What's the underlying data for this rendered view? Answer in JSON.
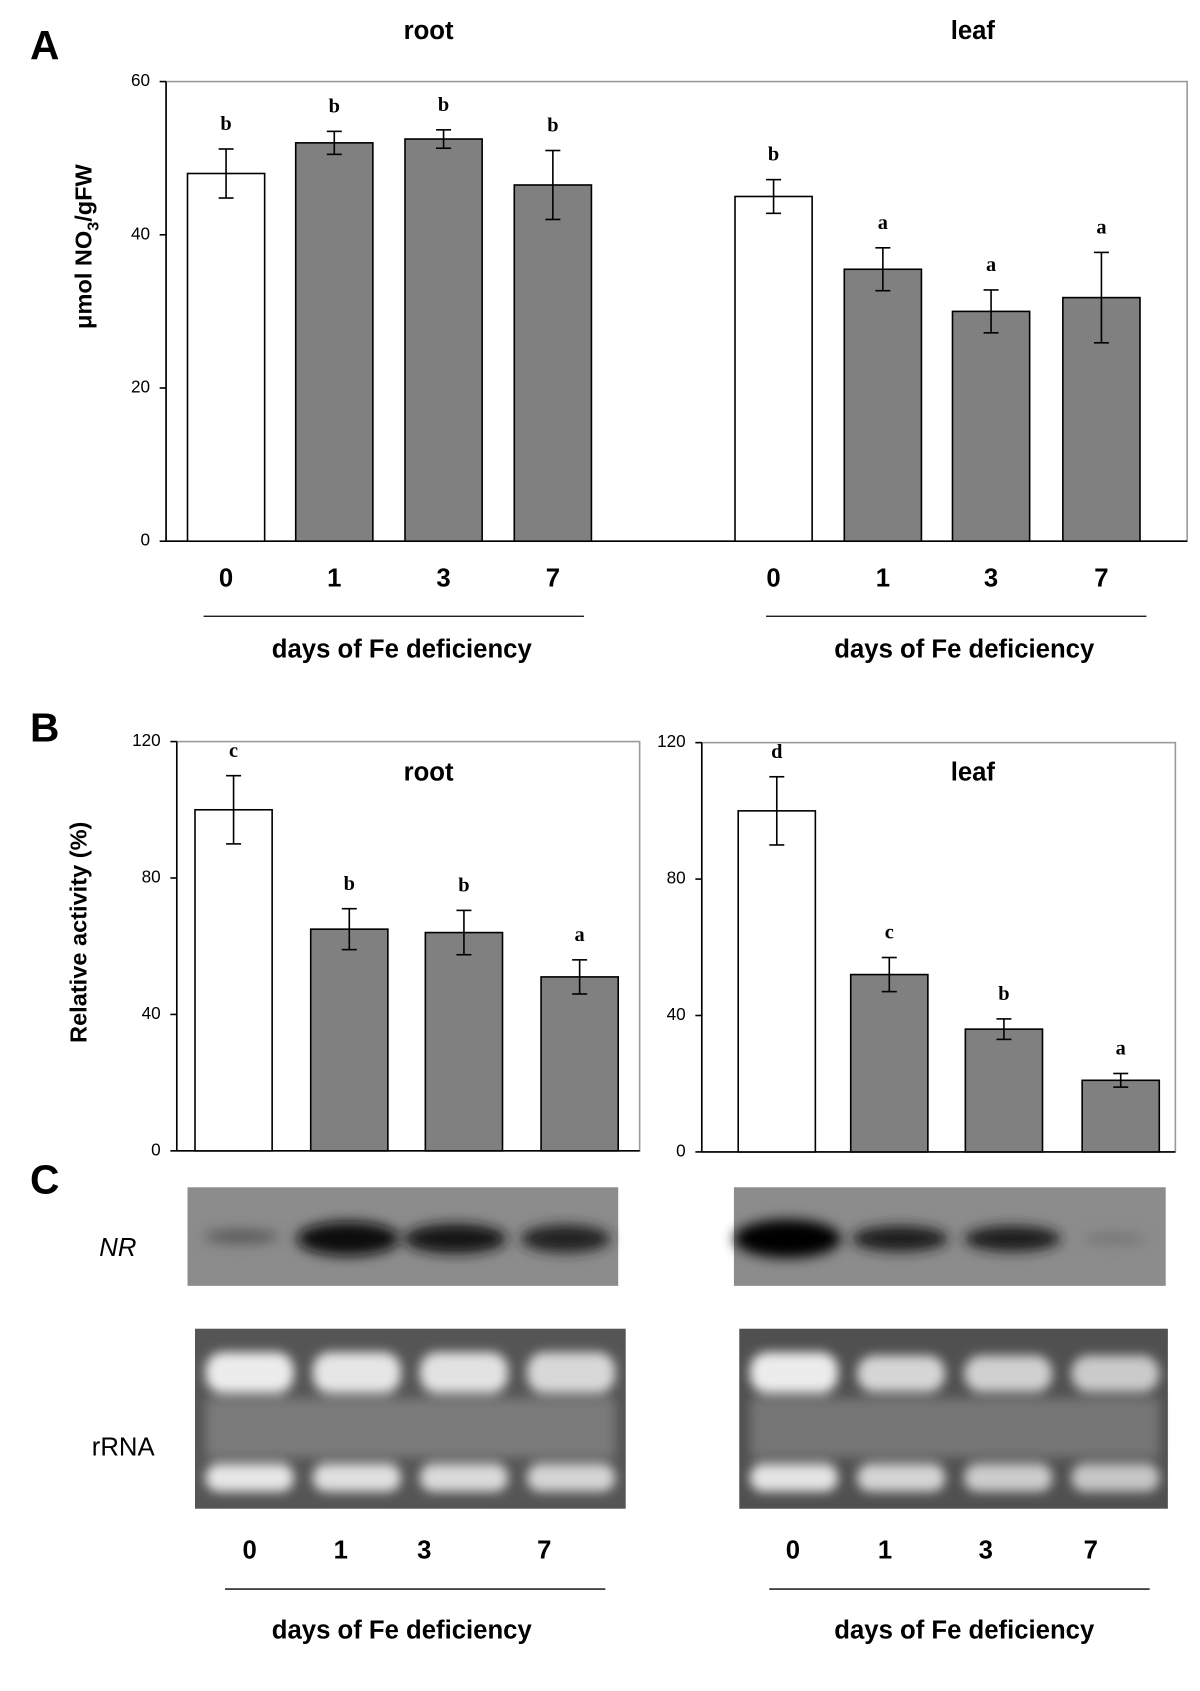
{
  "panel_labels": [
    "A",
    "B",
    "C"
  ],
  "chart_data": [
    {
      "type": "bar",
      "title": "root",
      "ylabel": [
        "μmol NO",
        "3",
        "/gFW"
      ],
      "categories": [
        "0",
        "1",
        "3",
        "7"
      ],
      "values": [
        48,
        52,
        52.5,
        46.5
      ],
      "errors": [
        3.2,
        1.5,
        1.2,
        4.5
      ],
      "annotations": [
        "b",
        "b",
        "b",
        "b"
      ],
      "colors": [
        "#ffffff",
        "#808080",
        "#808080",
        "#808080"
      ],
      "ylim": [
        0,
        60
      ],
      "yticks": [
        0,
        20,
        40,
        60
      ],
      "xlabel": "days of Fe deficiency"
    },
    {
      "type": "bar",
      "title": "leaf",
      "categories": [
        "0",
        "1",
        "3",
        "7"
      ],
      "values": [
        45,
        35.5,
        30,
        31.8
      ],
      "errors": [
        2.2,
        2.8,
        2.8,
        5.9
      ],
      "annotations": [
        "b",
        "a",
        "a",
        "a"
      ],
      "colors": [
        "#ffffff",
        "#808080",
        "#808080",
        "#808080"
      ],
      "ylim": [
        0,
        60
      ],
      "xlabel": "days of Fe deficiency"
    },
    {
      "type": "bar",
      "title": "root",
      "ylabel": [
        "Relative activity (%)"
      ],
      "values": [
        100,
        65,
        64,
        51
      ],
      "errors": [
        10,
        6,
        6.5,
        5
      ],
      "annotations": [
        "c",
        "b",
        "b",
        "a"
      ],
      "colors": [
        "#ffffff",
        "#808080",
        "#808080",
        "#808080"
      ],
      "ylim": [
        0,
        120
      ],
      "yticks": [
        0,
        40,
        80,
        120
      ]
    },
    {
      "type": "bar",
      "title": "leaf",
      "values": [
        100,
        52,
        36,
        21
      ],
      "errors": [
        10,
        5,
        3,
        2
      ],
      "annotations": [
        "d",
        "c",
        "b",
        "a"
      ],
      "colors": [
        "#ffffff",
        "#808080",
        "#808080",
        "#808080"
      ],
      "ylim": [
        0,
        120
      ],
      "yticks": [
        0,
        40,
        80,
        120
      ]
    }
  ],
  "blots": {
    "probe_label": "NR",
    "loading_label": "rRNA",
    "groups": [
      {
        "categories": [
          "0",
          "1",
          "3",
          "7"
        ],
        "xlabel": "days of Fe deficiency"
      },
      {
        "categories": [
          "0",
          "1",
          "3",
          "7"
        ],
        "xlabel": "days of Fe deficiency"
      }
    ]
  }
}
